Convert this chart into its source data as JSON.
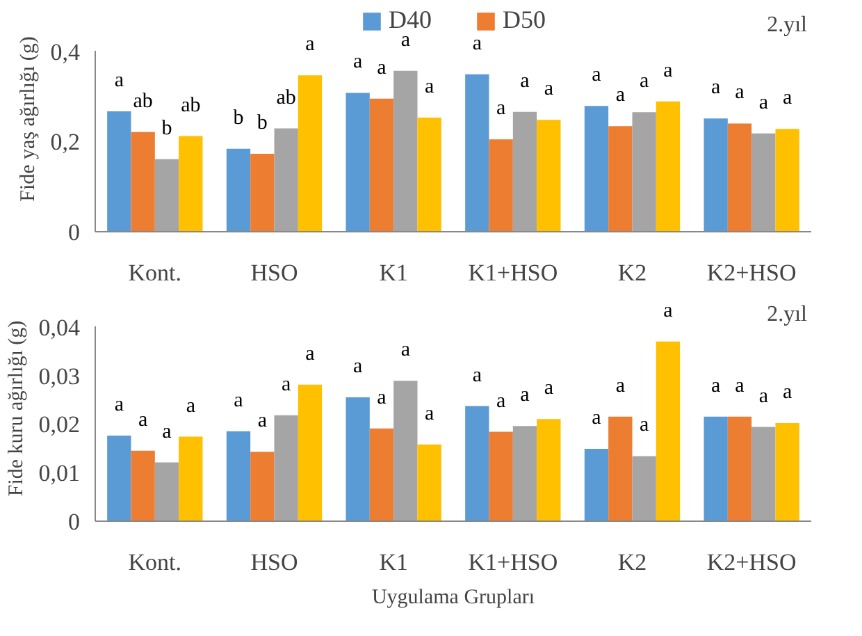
{
  "chart_data": [
    {
      "type": "bar",
      "ylabel": "Fide yaş ağırlığı (g)",
      "categories": [
        "Kont.",
        "HSO",
        "K1",
        "K1+HSO",
        "K2",
        "K2+HSO"
      ],
      "ylim": [
        0,
        0.4
      ],
      "yticks": [
        0,
        {
          "value": 0.2,
          "label": "0,2"
        },
        {
          "value": 0.4,
          "label": "0,4"
        }
      ],
      "legend": "top",
      "grid": false,
      "annotations": [
        "2.yıl"
      ],
      "series": [
        {
          "name": "D40",
          "color": "#5b9bd5",
          "values": [
            0.267,
            0.184,
            0.308,
            0.349,
            0.279,
            0.251
          ],
          "value_labels": [
            "a",
            "b",
            "a",
            "a",
            "a",
            "a"
          ]
        },
        {
          "name": "D50",
          "color": "#ed7d31",
          "values": [
            0.221,
            0.173,
            0.295,
            0.205,
            0.234,
            0.24
          ],
          "value_labels": [
            "ab",
            "b",
            "a",
            "a",
            "a",
            "a"
          ]
        },
        {
          "color": "#a5a5a5",
          "values": [
            0.161,
            0.229,
            0.357,
            0.266,
            0.265,
            0.218
          ],
          "value_labels": [
            "b",
            "ab",
            "a",
            "a",
            "a",
            "a"
          ]
        },
        {
          "color": "#ffc000",
          "values": [
            0.212,
            0.347,
            0.253,
            0.248,
            0.289,
            0.228
          ],
          "value_labels": [
            "ab",
            "a",
            "a",
            "a",
            "a",
            "a"
          ]
        }
      ]
    },
    {
      "type": "bar",
      "ylabel": "Fide kuru ağırlığı (g)",
      "xlabel": "Uygulama Grupları",
      "categories": [
        "Kont.",
        "HSO",
        "K1",
        "K1+HSO",
        "K2",
        "K2+HSO"
      ],
      "ylim": [
        0,
        0.04
      ],
      "yticks": [
        0,
        {
          "value": 0.01,
          "label": "0,01"
        },
        {
          "value": 0.02,
          "label": "0,02"
        },
        {
          "value": 0.03,
          "label": "0,03"
        },
        {
          "value": 0.04,
          "label": "0,04"
        }
      ],
      "grid": false,
      "annotations": [
        "2.yıl"
      ],
      "series": [
        {
          "color": "#5b9bd5",
          "values": [
            0.0176,
            0.0185,
            0.0255,
            0.0237,
            0.0149,
            0.0215
          ],
          "value_labels": [
            "a",
            "a",
            "a",
            "a",
            "a",
            "a"
          ]
        },
        {
          "color": "#ed7d31",
          "values": [
            0.0145,
            0.0143,
            0.0191,
            0.0184,
            0.0215,
            0.0215
          ],
          "value_labels": [
            "a",
            "a",
            "a",
            "a",
            "a",
            "a"
          ]
        },
        {
          "color": "#a5a5a5",
          "values": [
            0.0121,
            0.0218,
            0.0289,
            0.0196,
            0.0134,
            0.0194
          ],
          "value_labels": [
            "a",
            "a",
            "a",
            "a",
            "a",
            "a"
          ]
        },
        {
          "color": "#ffc000",
          "values": [
            0.0174,
            0.0281,
            0.0158,
            0.021,
            0.037,
            0.0202
          ],
          "value_labels": [
            "a",
            "a",
            "a",
            "a",
            "a",
            "a"
          ]
        }
      ]
    }
  ]
}
